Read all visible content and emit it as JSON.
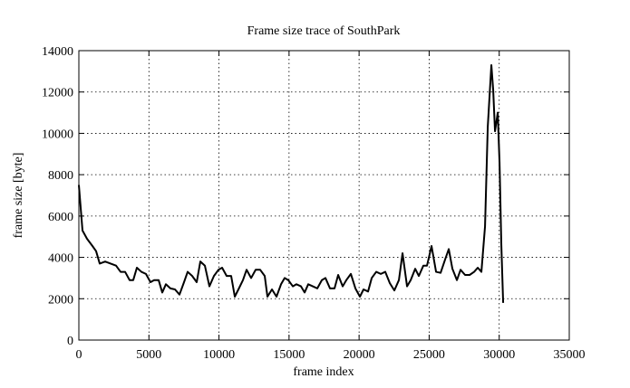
{
  "chart_data": {
    "type": "line",
    "title": "Frame size trace of SouthPark",
    "x_label": "frame index",
    "y_label": "frame size [byte]",
    "color": "#000000",
    "grid": true,
    "xlim": [
      0,
      35000
    ],
    "xticks": [
      0,
      5000,
      10000,
      15000,
      20000,
      25000,
      30000,
      35000
    ],
    "ylim": [
      0,
      14000
    ],
    "yticks": [
      0,
      2000,
      4000,
      6000,
      8000,
      10000,
      12000,
      14000
    ],
    "x": [
      0,
      259,
      582,
      970,
      1229,
      1488,
      1876,
      2264,
      2653,
      2976,
      3300,
      3623,
      3882,
      4141,
      4464,
      4788,
      5111,
      5370,
      5694,
      5952,
      6211,
      6535,
      6858,
      7182,
      7505,
      7764,
      8088,
      8411,
      8670,
      8993,
      9317,
      9641,
      9964,
      10223,
      10547,
      10870,
      11129,
      11388,
      11712,
      11970,
      12294,
      12618,
      12941,
      13265,
      13459,
      13782,
      14106,
      14429,
      14688,
      14946,
      15270,
      15529,
      15852,
      16111,
      16370,
      16694,
      17017,
      17341,
      17600,
      17923,
      18247,
      18506,
      18829,
      19088,
      19412,
      19735,
      20059,
      20318,
      20641,
      20900,
      21224,
      21547,
      21870,
      22194,
      22517,
      22841,
      23100,
      23423,
      23682,
      24006,
      24264,
      24588,
      24847,
      25170,
      25494,
      25817,
      26141,
      26400,
      26659,
      26982,
      27241,
      27564,
      27888,
      28211,
      28470,
      28729,
      28988,
      29182,
      29440,
      29570,
      29700,
      29894,
      30023,
      30152,
      30282
    ],
    "values": [
      7500,
      5300,
      4900,
      4550,
      4300,
      3700,
      3800,
      3700,
      3600,
      3300,
      3300,
      2900,
      2900,
      3500,
      3300,
      3200,
      2800,
      2900,
      2900,
      2300,
      2700,
      2500,
      2450,
      2200,
      2800,
      3300,
      3100,
      2800,
      3800,
      3600,
      2600,
      3100,
      3400,
      3500,
      3100,
      3100,
      2100,
      2450,
      2900,
      3400,
      3000,
      3400,
      3400,
      3100,
      2100,
      2450,
      2100,
      2700,
      3000,
      2900,
      2600,
      2700,
      2600,
      2300,
      2700,
      2600,
      2500,
      2900,
      3000,
      2500,
      2500,
      3150,
      2600,
      2900,
      3200,
      2500,
      2100,
      2450,
      2350,
      3000,
      3300,
      3200,
      3300,
      2750,
      2400,
      2900,
      4200,
      2600,
      2900,
      3450,
      3100,
      3600,
      3600,
      4550,
      3300,
      3250,
      3900,
      4400,
      3450,
      2900,
      3400,
      3150,
      3150,
      3300,
      3500,
      3300,
      5500,
      10300,
      13300,
      12100,
      10100,
      11000,
      8600,
      4600,
      1800
    ]
  }
}
